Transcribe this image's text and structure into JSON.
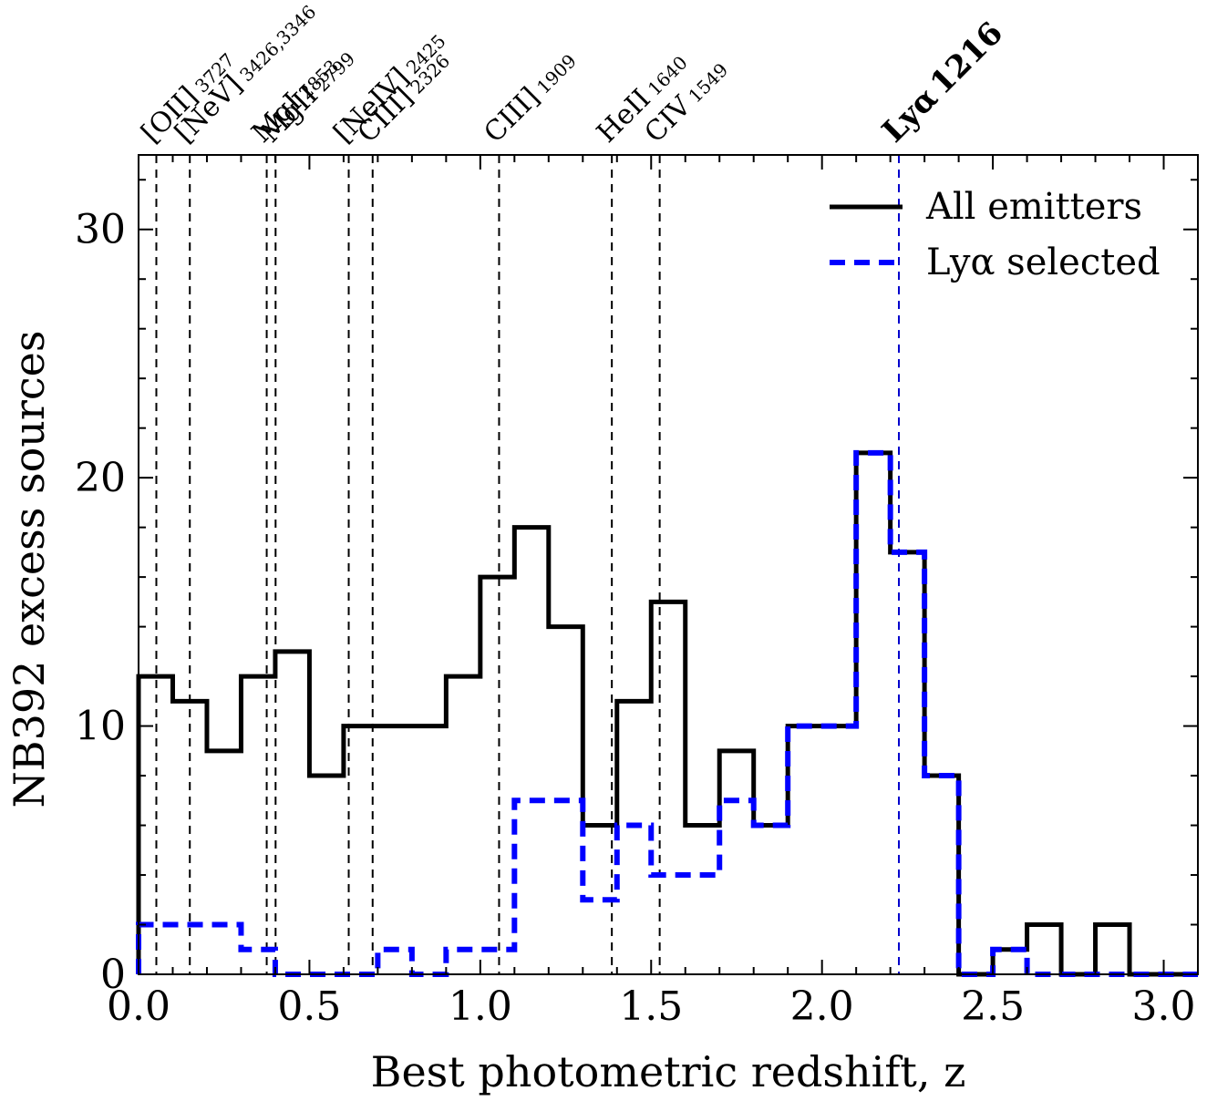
{
  "chart_data": {
    "type": "histogram",
    "xlabel": "Best photometric redshift, z",
    "ylabel": "NB392 excess sources",
    "xlim": [
      0.0,
      3.1
    ],
    "ylim": [
      0,
      33
    ],
    "xticks": [
      0.0,
      0.5,
      1.0,
      1.5,
      2.0,
      2.5,
      3.0
    ],
    "xtick_labels": [
      "0.0",
      "0.5",
      "1.0",
      "1.5",
      "2.0",
      "2.5",
      "3.0"
    ],
    "yticks": [
      0,
      10,
      20,
      30
    ],
    "ytick_labels": [
      "0",
      "10",
      "20",
      "30"
    ],
    "grid": false,
    "legend_position": "top-right",
    "bin_edges": [
      0.0,
      0.1,
      0.2,
      0.3,
      0.4,
      0.5,
      0.6,
      0.7,
      0.8,
      0.9,
      1.0,
      1.1,
      1.2,
      1.3,
      1.4,
      1.5,
      1.6,
      1.7,
      1.8,
      1.9,
      2.0,
      2.1,
      2.2,
      2.3,
      2.4,
      2.5,
      2.6,
      2.7,
      2.8,
      2.9,
      3.0,
      3.1
    ],
    "series": [
      {
        "name": "All emitters",
        "style": "solid",
        "color": "#000000",
        "values": [
          12,
          11,
          9,
          12,
          13,
          8,
          10,
          10,
          10,
          12,
          16,
          18,
          14,
          6,
          11,
          15,
          6,
          9,
          6,
          10,
          10,
          21,
          17,
          8,
          0,
          1,
          2,
          0,
          2,
          0,
          0
        ]
      },
      {
        "name": "Lyα selected",
        "style": "dashed",
        "color": "#0000ff",
        "values": [
          2,
          2,
          2,
          1,
          0,
          0,
          0,
          1,
          0,
          1,
          1,
          7,
          7,
          3,
          6,
          4,
          4,
          7,
          6,
          10,
          10,
          21,
          17,
          8,
          0,
          1,
          0,
          0,
          0,
          0,
          0
        ]
      }
    ],
    "emission_lines": [
      {
        "label": "[OII]",
        "wavelength": "3727",
        "z": 0.052
      },
      {
        "label": "[NeV]",
        "wavelength": "3426,3346",
        "z": 0.15
      },
      {
        "label": "MgI",
        "wavelength": "2853",
        "z": 0.375
      },
      {
        "label": "MgII",
        "wavelength": "2799",
        "z": 0.401
      },
      {
        "label": "[NeIV]",
        "wavelength": "2425",
        "z": 0.615
      },
      {
        "label": "CIII]",
        "wavelength": "2326",
        "z": 0.685
      },
      {
        "label": "CIII]",
        "wavelength": "1909",
        "z": 1.055
      },
      {
        "label": "HeII",
        "wavelength": "1640",
        "z": 1.385
      },
      {
        "label": "CIV",
        "wavelength": "1549",
        "z": 1.525
      },
      {
        "label": "Lyα",
        "wavelength": "1216",
        "z": 2.225,
        "highlight": true,
        "color": "#0000cc"
      }
    ]
  }
}
